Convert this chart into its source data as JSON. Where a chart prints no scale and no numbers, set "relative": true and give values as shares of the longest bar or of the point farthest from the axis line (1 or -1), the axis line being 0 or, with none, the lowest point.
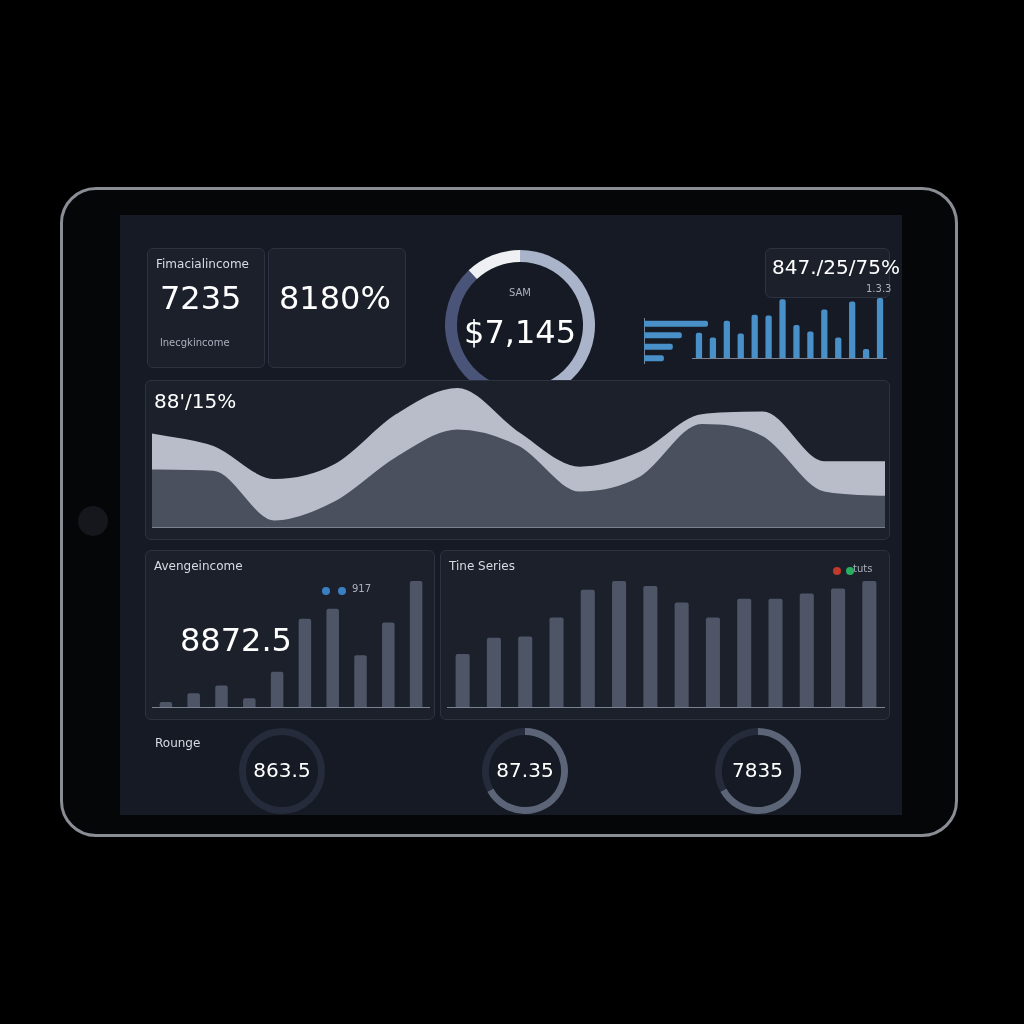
{
  "chart_data": [
    {
      "type": "other",
      "title": "Fimacialincome",
      "annotations": [
        "7235",
        "lnecgkincome"
      ]
    },
    {
      "type": "other",
      "annotations": [
        "8180%"
      ]
    },
    {
      "type": "donut",
      "categories": [
        null,
        null,
        null
      ],
      "values": [
        55,
        33,
        12
      ],
      "colors": [
        "#a9b3c9",
        "#4a5478",
        "#eef0f4"
      ],
      "annotations": [
        "SAM",
        "$7,145"
      ]
    },
    {
      "type": "other",
      "annotations": [
        "847./25/75%",
        "1.3.3"
      ]
    },
    {
      "type": "bar",
      "orientation": "horizontal",
      "relative": true,
      "categories": [
        null,
        null,
        null,
        null
      ],
      "values": [
        1,
        0.59,
        0.45,
        0.31
      ],
      "color": "#4a90c8"
    },
    {
      "type": "bar",
      "relative": true,
      "categories": [
        null,
        null,
        null,
        null,
        null,
        null,
        null,
        null,
        null,
        null,
        null,
        null,
        null,
        null
      ],
      "values": [
        0.42,
        0.34,
        0.62,
        0.41,
        0.72,
        0.71,
        0.98,
        0.55,
        0.44,
        0.81,
        0.34,
        0.94,
        0.15,
        1
      ],
      "color": "#4a90c8"
    },
    {
      "type": "area",
      "title": "88'/15%",
      "relative": true,
      "categories": [
        null,
        null,
        null,
        null,
        null,
        null,
        null,
        null,
        null,
        null,
        null,
        null,
        null
      ],
      "series": [
        {
          "color": "#4a505d",
          "values": [
            0.41,
            0.4,
            0.04,
            0.18,
            0.5,
            0.7,
            0.58,
            0.25,
            0.36,
            0.74,
            0.65,
            0.25,
            0.22
          ]
        },
        {
          "color": "#b9bdc9",
          "values": [
            0.67,
            0.58,
            0.34,
            0.45,
            0.81,
            1,
            0.68,
            0.43,
            0.54,
            0.81,
            0.83,
            0.47,
            0.47
          ]
        }
      ]
    },
    {
      "type": "bar",
      "title": "Avengeincome",
      "relative": true,
      "categories": [
        null,
        null,
        null,
        null,
        null,
        null,
        null,
        null,
        null,
        null
      ],
      "values": [
        0.04,
        0.11,
        0.17,
        0.07,
        0.28,
        0.7,
        0.78,
        0.41,
        0.67,
        1
      ],
      "color": "#4d5566",
      "annotations": [
        "8872.5",
        "917"
      ]
    },
    {
      "type": "bar",
      "title": "Tine Series",
      "relative": true,
      "categories": [
        null,
        null,
        null,
        null,
        null,
        null,
        null,
        null,
        null,
        null,
        null,
        null,
        null,
        null
      ],
      "values": [
        0.42,
        0.55,
        0.56,
        0.71,
        0.93,
        1,
        0.96,
        0.83,
        0.71,
        0.86,
        0.86,
        0.9,
        0.94,
        1
      ],
      "color": "#4d5566",
      "annotations": [
        "tuts"
      ]
    },
    {
      "type": "other",
      "title": "Rounge",
      "annotations": [
        "863.5"
      ]
    },
    {
      "type": "donut",
      "categories": [
        null,
        null
      ],
      "values": [
        67,
        33
      ],
      "colors": [
        "#5c6578",
        "#252b3a"
      ],
      "annotations": [
        "87.35"
      ]
    },
    {
      "type": "donut",
      "categories": [
        null,
        null
      ],
      "values": [
        67,
        33
      ],
      "colors": [
        "#5c6578",
        "#252b3a"
      ],
      "annotations": [
        "7835"
      ]
    }
  ]
}
